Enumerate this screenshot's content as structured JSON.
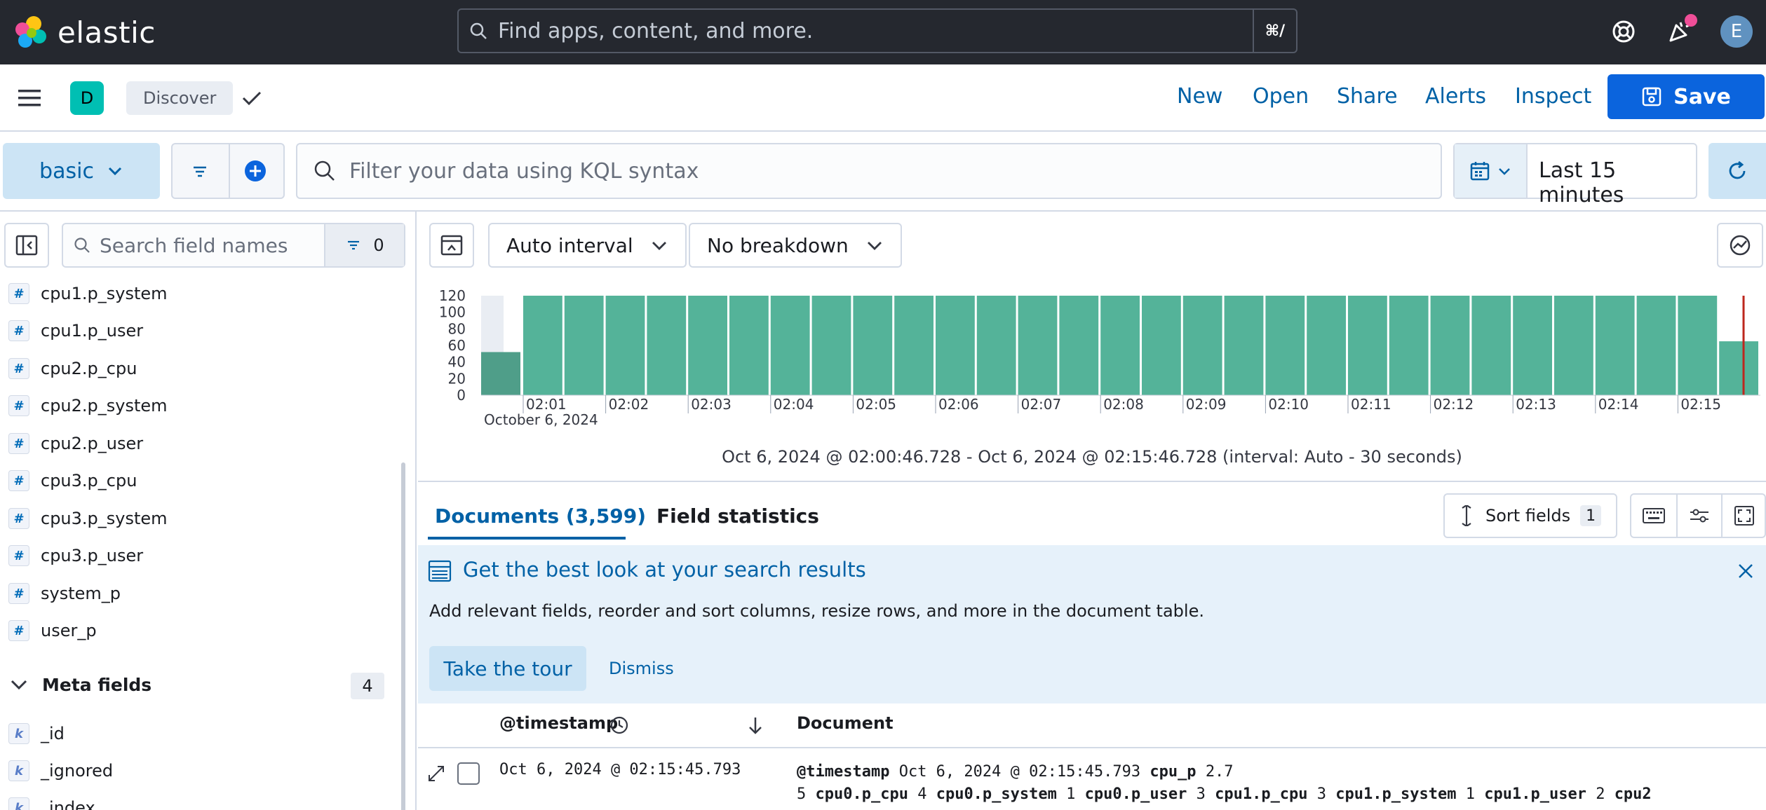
{
  "topbar": {
    "logo_text": "elastic",
    "search_placeholder": "Find apps, content, and more.",
    "search_shortcut": "⌘/",
    "user_initial": "E"
  },
  "appbar": {
    "space_initial": "D",
    "breadcrumb": "Discover",
    "nav": [
      "New",
      "Open",
      "Share",
      "Alerts",
      "Inspect"
    ],
    "save_label": "Save"
  },
  "querybar": {
    "data_view": "basic",
    "kql_placeholder": "Filter your data using KQL syntax",
    "time_range": "Last 15 minutes"
  },
  "sidebar": {
    "search_placeholder": "Search field names",
    "filter_count": "0",
    "fields": [
      {
        "type": "#",
        "name": "cpu1.p_system"
      },
      {
        "type": "#",
        "name": "cpu1.p_user"
      },
      {
        "type": "#",
        "name": "cpu2.p_cpu"
      },
      {
        "type": "#",
        "name": "cpu2.p_system"
      },
      {
        "type": "#",
        "name": "cpu2.p_user"
      },
      {
        "type": "#",
        "name": "cpu3.p_cpu"
      },
      {
        "type": "#",
        "name": "cpu3.p_system"
      },
      {
        "type": "#",
        "name": "cpu3.p_user"
      },
      {
        "type": "#",
        "name": "system_p"
      },
      {
        "type": "#",
        "name": "user_p"
      }
    ],
    "meta_label": "Meta fields",
    "meta_count": "4",
    "meta_fields": [
      {
        "type": "k",
        "name": "_id"
      },
      {
        "type": "k",
        "name": "_ignored"
      },
      {
        "type": "k",
        "name": "_index"
      }
    ]
  },
  "histogram_controls": {
    "interval": "Auto interval",
    "breakdown": "No breakdown"
  },
  "chart_data": {
    "type": "bar",
    "ylim": [
      0,
      120
    ],
    "y_ticks": [
      "120",
      "100",
      "80",
      "60",
      "40",
      "20",
      "0"
    ],
    "x_ticks": [
      "02:01",
      "02:02",
      "02:03",
      "02:04",
      "02:05",
      "02:06",
      "02:07",
      "02:08",
      "02:09",
      "02:10",
      "02:11",
      "02:12",
      "02:13",
      "02:14",
      "02:15"
    ],
    "x_sublabel": "October 6, 2024",
    "values": [
      52,
      120,
      120,
      120,
      120,
      120,
      120,
      120,
      120,
      120,
      120,
      120,
      120,
      120,
      120,
      120,
      120,
      120,
      120,
      120,
      120,
      120,
      120,
      120,
      120,
      120,
      120,
      120,
      120,
      120,
      65
    ],
    "bar_color": "#54b399"
  },
  "time_range_text": "Oct 6, 2024 @ 02:00:46.728 - Oct 6, 2024 @ 02:15:46.728 (interval: Auto - 30 seconds)",
  "tabs": {
    "documents": "Documents (3,599)",
    "field_statistics": "Field statistics"
  },
  "sort": {
    "label": "Sort fields",
    "count": "1"
  },
  "callout": {
    "title": "Get the best look at your search results",
    "body": "Add relevant fields, reorder and sort columns, resize rows, and more in the document table.",
    "tour_label": "Take the tour",
    "dismiss_label": "Dismiss"
  },
  "grid": {
    "col_timestamp": "@timestamp",
    "col_document": "Document",
    "row_timestamp": "Oct 6, 2024 @ 02:15:45.793",
    "doc_line1": [
      {
        "k": "@timestamp",
        "v": "Oct 6, 2024 @ 02:15:45.793"
      },
      {
        "k": "cpu_p",
        "v": "2.7"
      }
    ],
    "doc_line2_lead": "5",
    "doc_line2": [
      {
        "k": "cpu0.p_cpu",
        "v": "4"
      },
      {
        "k": "cpu0.p_system",
        "v": "1"
      },
      {
        "k": "cpu0.p_user",
        "v": "3"
      },
      {
        "k": "cpu1.p_cpu",
        "v": "3"
      },
      {
        "k": "cpu1.p_system",
        "v": "1"
      },
      {
        "k": "cpu1.p_user",
        "v": "2"
      },
      {
        "k": "cpu2",
        "v": ""
      }
    ]
  }
}
